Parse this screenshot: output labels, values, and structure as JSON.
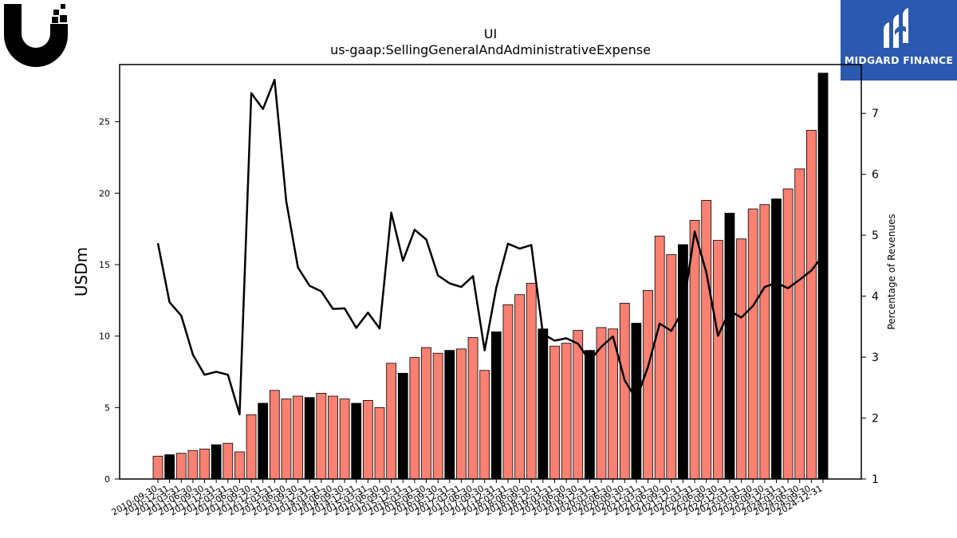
{
  "logo": {
    "icon": "ui-logo-icon"
  },
  "brand": {
    "name": "MIDGARD FINANCE",
    "icon": "midgard-logo-icon",
    "color": "#2b59b0"
  },
  "chart_data": {
    "type": "bar",
    "title": "UI",
    "subtitle": "us-gaap:SellingGeneralAndAdministrativeExpense",
    "ylabel": "USDm",
    "y2label": "Percentage of Revenues",
    "ylim": [
      0,
      29
    ],
    "y2lim": [
      1,
      7.8
    ],
    "yticks": [
      0,
      5,
      10,
      15,
      20,
      25
    ],
    "y2ticks": [
      1,
      2,
      3,
      4,
      5,
      6,
      7
    ],
    "grid": false,
    "colors": {
      "bar": "#fa8072",
      "highlight": "#000000",
      "line": "#000000"
    },
    "categories": [
      "2010-09-30",
      "2010-12-31",
      "2011-03-31",
      "2011-06-30",
      "2011-09-30",
      "2011-12-31",
      "2012-03-31",
      "2012-06-30",
      "2012-09-30",
      "2012-12-31",
      "2013-03-31",
      "2013-06-30",
      "2013-09-30",
      "2013-12-31",
      "2014-03-31",
      "2014-06-30",
      "2014-09-30",
      "2014-12-31",
      "2015-03-31",
      "2015-06-30",
      "2015-09-30",
      "2015-12-31",
      "2016-03-31",
      "2016-06-30",
      "2016-09-30",
      "2016-12-31",
      "2017-03-31",
      "2017-06-30",
      "2017-09-30",
      "2017-12-31",
      "2018-03-31",
      "2018-06-30",
      "2018-09-30",
      "2018-12-31",
      "2019-03-31",
      "2019-06-30",
      "2019-09-30",
      "2019-12-31",
      "2020-03-31",
      "2020-06-30",
      "2020-09-30",
      "2020-12-31",
      "2021-03-31",
      "2021-06-30",
      "2021-09-30",
      "2021-12-31",
      "2022-03-31",
      "2022-06-30",
      "2022-09-30",
      "2022-12-31",
      "2023-03-31",
      "2023-06-30",
      "2023-09-30",
      "2023-12-31",
      "2024-03-31",
      "2024-06-30",
      "2024-09-30",
      "2024-12-31"
    ],
    "series": [
      {
        "values": [
          1.6,
          1.7,
          1.8,
          2.0,
          2.1,
          2.4,
          2.5,
          1.9,
          4.5,
          5.3,
          6.2,
          5.6,
          5.8,
          5.7,
          6.0,
          5.8,
          5.6,
          5.3,
          5.5,
          5.0,
          8.1,
          7.4,
          8.5,
          9.2,
          8.8,
          9.0,
          9.1,
          9.9,
          7.6,
          10.3,
          12.2,
          12.9,
          13.7,
          10.5,
          9.3,
          9.5,
          10.4,
          9.0,
          10.6,
          10.5,
          12.3,
          10.9,
          13.2,
          17.0,
          15.7,
          16.4,
          18.1,
          19.5,
          16.7,
          18.6,
          16.8,
          18.9,
          19.2,
          19.6,
          20.3,
          21.7,
          24.4,
          28.4
        ],
        "highlight": [
          false,
          true,
          false,
          false,
          false,
          true,
          false,
          false,
          false,
          true,
          false,
          false,
          false,
          true,
          false,
          false,
          false,
          true,
          false,
          false,
          false,
          true,
          false,
          false,
          false,
          true,
          false,
          false,
          false,
          true,
          false,
          false,
          false,
          true,
          false,
          false,
          false,
          true,
          false,
          false,
          false,
          true,
          false,
          false,
          false,
          true,
          false,
          false,
          false,
          true,
          false,
          false,
          false,
          true,
          false,
          false,
          false,
          true
        ]
      },
      {
        "axis": "right",
        "values": [
          4.87,
          3.9,
          3.68,
          3.04,
          2.71,
          2.76,
          2.71,
          2.06,
          7.33,
          7.07,
          7.55,
          5.56,
          4.47,
          4.17,
          4.08,
          3.79,
          3.8,
          3.48,
          3.73,
          3.47,
          5.37,
          4.58,
          5.09,
          4.93,
          4.34,
          4.21,
          4.15,
          4.33,
          3.11,
          4.14,
          4.86,
          4.78,
          4.84,
          3.38,
          3.27,
          3.31,
          3.22,
          2.94,
          3.17,
          3.34,
          2.62,
          2.31,
          2.84,
          3.55,
          3.43,
          3.77,
          5.06,
          4.39,
          3.35,
          3.76,
          3.65,
          3.84,
          4.15,
          4.22,
          4.13,
          4.27,
          4.42,
          4.67
        ]
      }
    ]
  }
}
